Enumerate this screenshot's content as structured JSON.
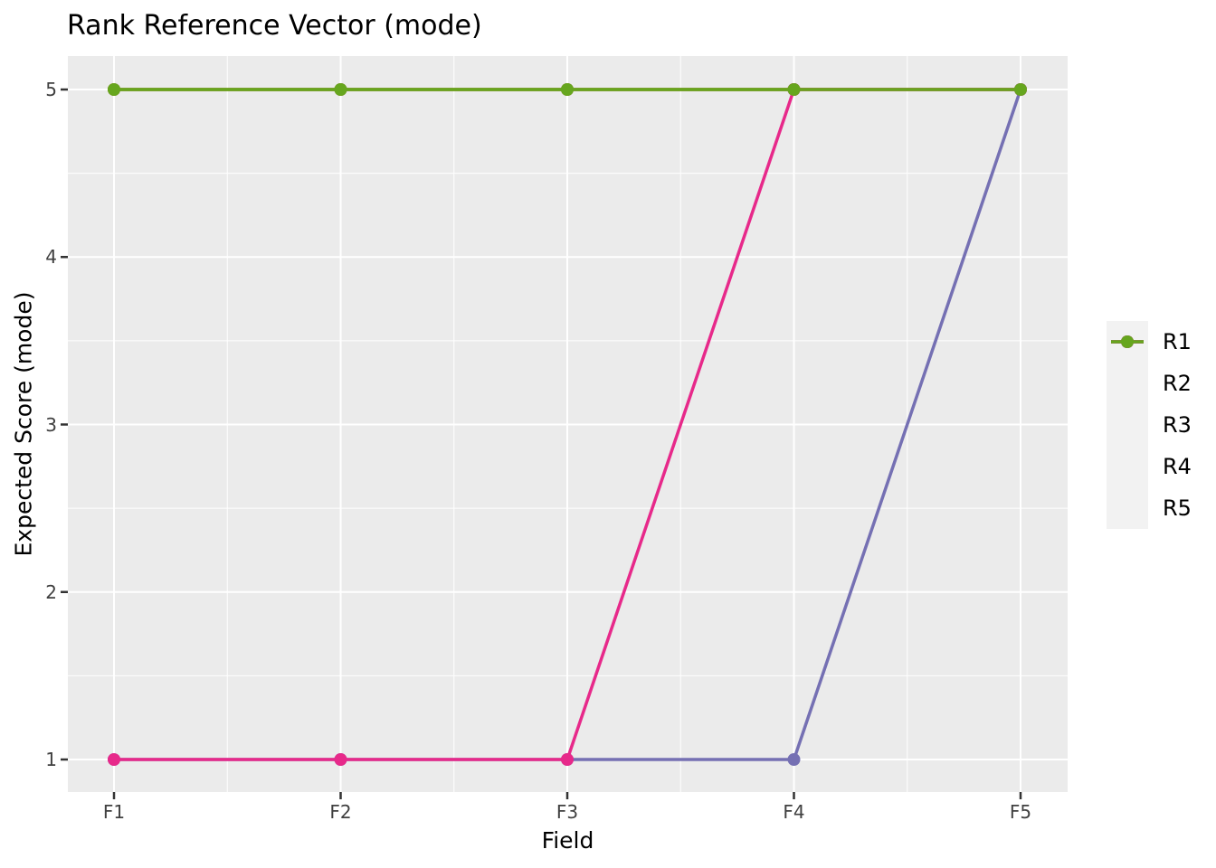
{
  "title": "Rank Reference Vector (mode)",
  "chart_data": {
    "type": "line",
    "categories": [
      "F1",
      "F2",
      "F3",
      "F4",
      "F5"
    ],
    "series": [
      {
        "name": "R1",
        "color": "#1B9E77",
        "values": [
          5,
          5,
          5,
          5,
          5
        ]
      },
      {
        "name": "R2",
        "color": "#D95F02",
        "values": [
          5,
          5,
          5,
          5,
          5
        ]
      },
      {
        "name": "R3",
        "color": "#7570B3",
        "values": [
          1,
          1,
          1,
          1,
          5
        ]
      },
      {
        "name": "R4",
        "color": "#E7298A",
        "values": [
          1,
          1,
          1,
          5,
          5
        ]
      },
      {
        "name": "R5",
        "color": "#66A61E",
        "values": [
          5,
          5,
          5,
          5,
          5
        ]
      }
    ],
    "title": "Rank Reference Vector (mode)",
    "xlabel": "Field",
    "ylabel": "Expected Score (mode)",
    "yticks": [
      1,
      2,
      3,
      4,
      5
    ],
    "ylim": [
      0.8,
      5.2
    ],
    "grid": true,
    "legend_position": "right",
    "panel_background": "#EBEBEB",
    "grid_color": "#FFFFFF",
    "tick_color": "#333333"
  }
}
